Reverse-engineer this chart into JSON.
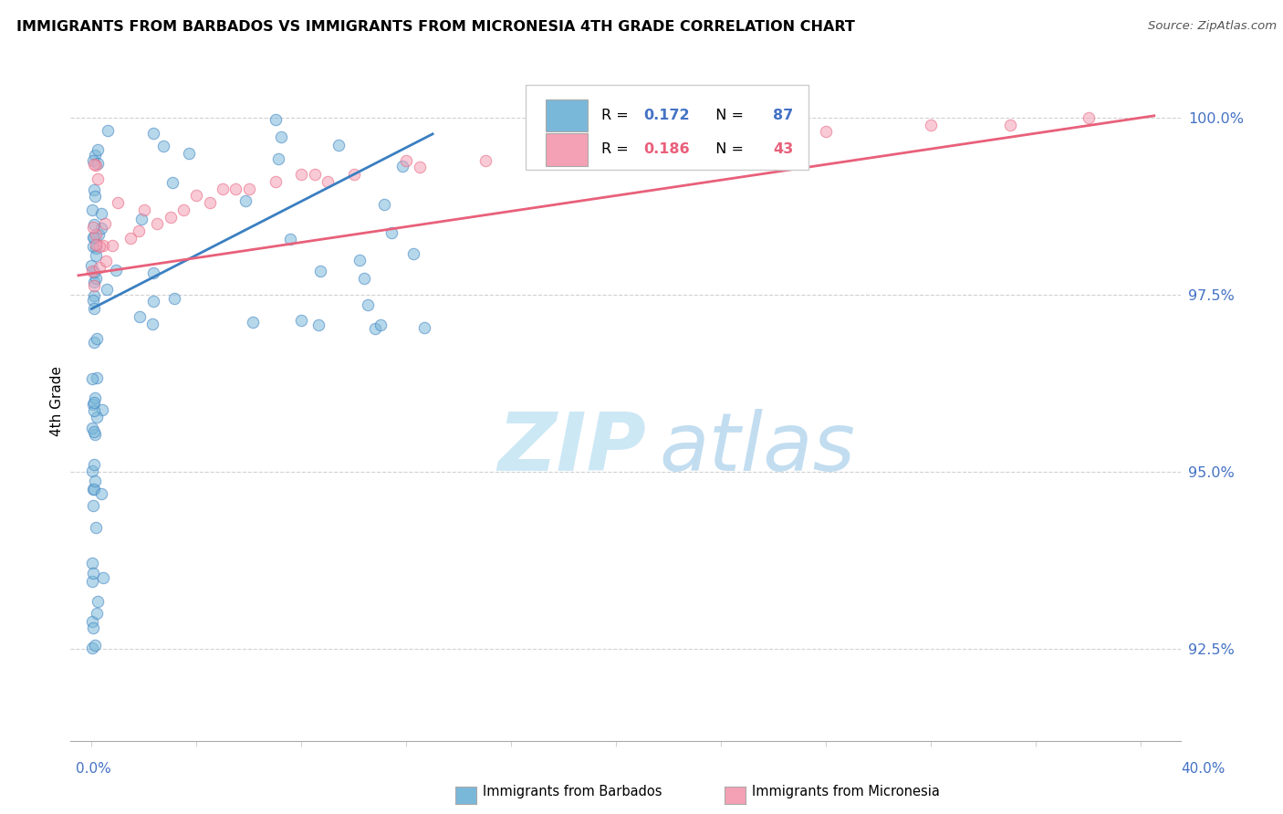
{
  "title": "IMMIGRANTS FROM BARBADOS VS IMMIGRANTS FROM MICRONESIA 4TH GRADE CORRELATION CHART",
  "source": "Source: ZipAtlas.com",
  "ylabel": "4th Grade",
  "ymin": 91.2,
  "ymax": 100.8,
  "xmin": -0.8,
  "xmax": 41.5,
  "yticks": [
    92.5,
    95.0,
    97.5,
    100.0
  ],
  "ytick_labels": [
    "92.5%",
    "95.0%",
    "97.5%",
    "100.0%"
  ],
  "color_blue": "#7ab8d9",
  "color_pink": "#f4a0b5",
  "color_blue_line": "#3a7fc1",
  "color_pink_line": "#e8607a",
  "watermark_zip": "ZIP",
  "watermark_atlas": "atlas",
  "watermark_color": "#cde8f5"
}
